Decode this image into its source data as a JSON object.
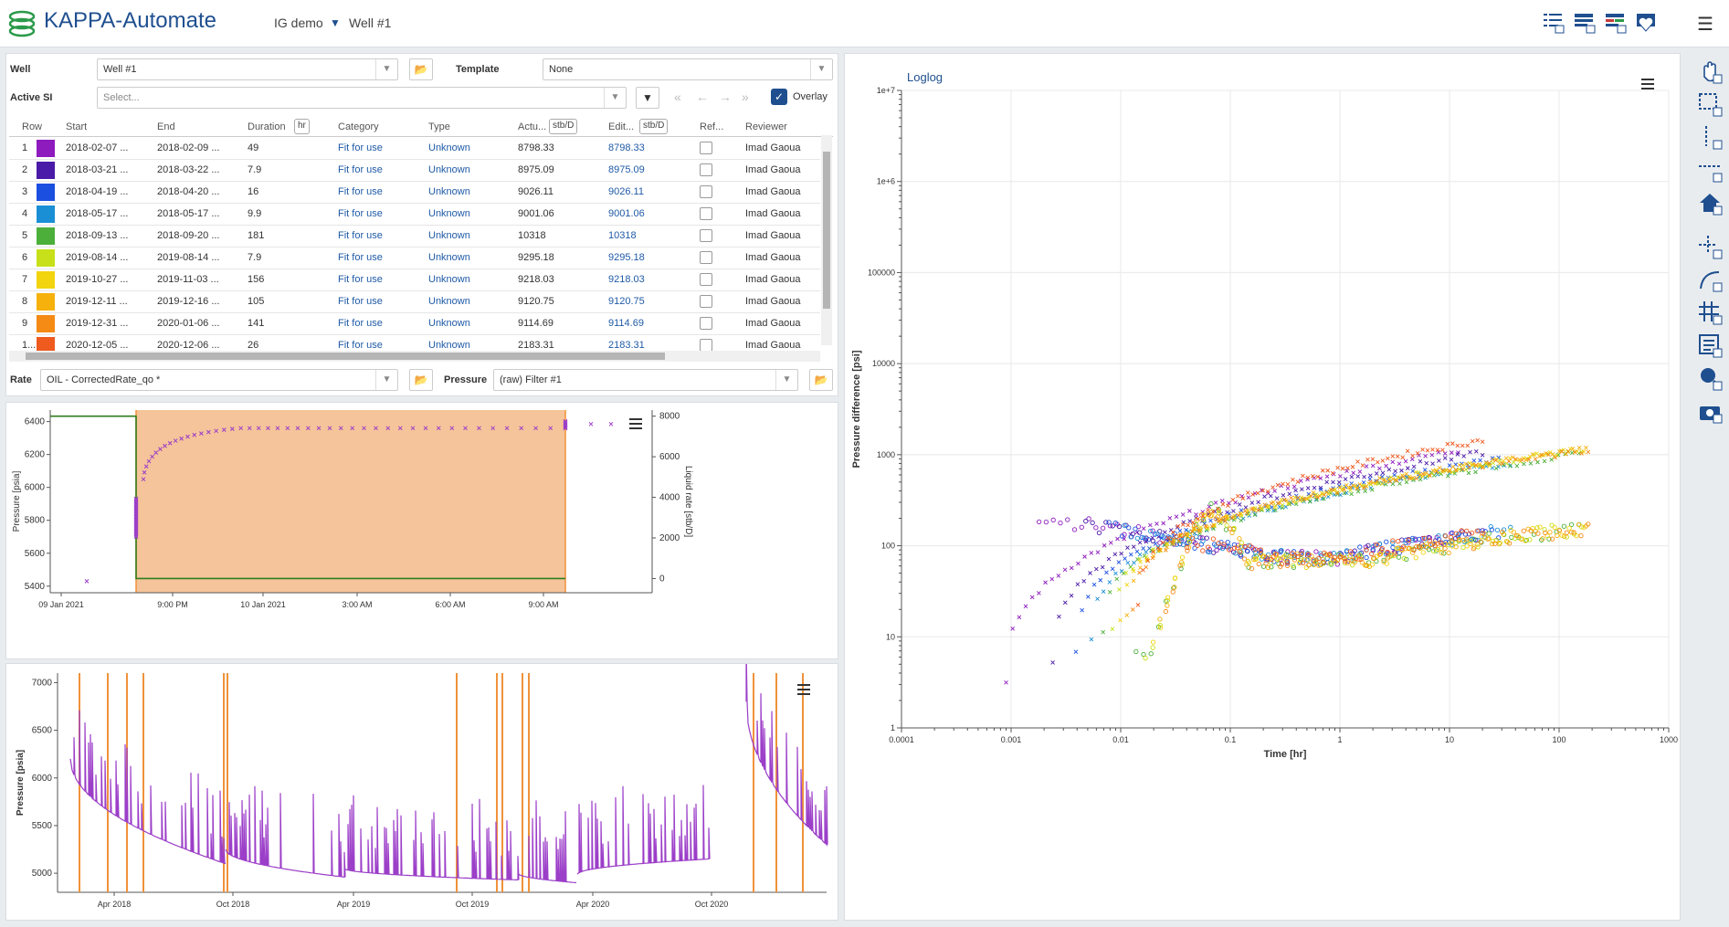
{
  "header": {
    "app_title": "KAPPA-Automate",
    "breadcrumb_project": "IG demo",
    "breadcrumb_well": "Well #1"
  },
  "form": {
    "well_label": "Well",
    "well_value": "Well #1",
    "template_label": "Template",
    "template_value": "None",
    "active_si_label": "Active SI",
    "active_si_placeholder": "Select...",
    "overlay_label": "Overlay",
    "rate_label": "Rate",
    "rate_value": "OIL - CorrectedRate_qo *",
    "pressure_label": "Pressure",
    "pressure_value": "(raw) Filter #1"
  },
  "table": {
    "headers": {
      "row": "Row",
      "start": "Start",
      "end": "End",
      "duration": "Duration",
      "duration_unit": "hr",
      "category": "Category",
      "type": "Type",
      "actual": "Actu...",
      "actual_unit": "stb/D",
      "edited": "Edit...",
      "edited_unit": "stb/D",
      "ref": "Ref...",
      "reviewer": "Reviewer"
    },
    "rows": [
      {
        "row": "1",
        "color": "#8e1bbd",
        "start": "2018-02-07 ...",
        "end": "2018-02-09 ...",
        "duration": "49",
        "category": "Fit for use",
        "type": "Unknown",
        "actual": "8798.33",
        "edited": "8798.33",
        "reviewer": "Imad Gaoua"
      },
      {
        "row": "2",
        "color": "#4a1aa8",
        "start": "2018-03-21 ...",
        "end": "2018-03-22 ...",
        "duration": "7.9",
        "category": "Fit for use",
        "type": "Unknown",
        "actual": "8975.09",
        "edited": "8975.09",
        "reviewer": "Imad Gaoua"
      },
      {
        "row": "3",
        "color": "#1b4fe0",
        "start": "2018-04-19 ...",
        "end": "2018-04-20 ...",
        "duration": "16",
        "category": "Fit for use",
        "type": "Unknown",
        "actual": "9026.11",
        "edited": "9026.11",
        "reviewer": "Imad Gaoua"
      },
      {
        "row": "4",
        "color": "#1a8fd6",
        "start": "2018-05-17 ...",
        "end": "2018-05-17 ...",
        "duration": "9.9",
        "category": "Fit for use",
        "type": "Unknown",
        "actual": "9001.06",
        "edited": "9001.06",
        "reviewer": "Imad Gaoua"
      },
      {
        "row": "5",
        "color": "#4caf3a",
        "start": "2018-09-13 ...",
        "end": "2018-09-20 ...",
        "duration": "181",
        "category": "Fit for use",
        "type": "Unknown",
        "actual": "10318",
        "edited": "10318",
        "reviewer": "Imad Gaoua"
      },
      {
        "row": "6",
        "color": "#c7e01a",
        "start": "2019-08-14 ...",
        "end": "2019-08-14 ...",
        "duration": "7.9",
        "category": "Fit for use",
        "type": "Unknown",
        "actual": "9295.18",
        "edited": "9295.18",
        "reviewer": "Imad Gaoua"
      },
      {
        "row": "7",
        "color": "#f2d40f",
        "start": "2019-10-27 ...",
        "end": "2019-11-03 ...",
        "duration": "156",
        "category": "Fit for use",
        "type": "Unknown",
        "actual": "9218.03",
        "edited": "9218.03",
        "reviewer": "Imad Gaoua"
      },
      {
        "row": "8",
        "color": "#f6b10d",
        "start": "2019-12-11 ...",
        "end": "2019-12-16 ...",
        "duration": "105",
        "category": "Fit for use",
        "type": "Unknown",
        "actual": "9120.75",
        "edited": "9120.75",
        "reviewer": "Imad Gaoua"
      },
      {
        "row": "9",
        "color": "#f58a14",
        "start": "2019-12-31 ...",
        "end": "2020-01-06 ...",
        "duration": "141",
        "category": "Fit for use",
        "type": "Unknown",
        "actual": "9114.69",
        "edited": "9114.69",
        "reviewer": "Imad Gaoua"
      },
      {
        "row": "1...",
        "color": "#ef5a1f",
        "start": "2020-12-05 ...",
        "end": "2020-12-06 ...",
        "duration": "26",
        "category": "Fit for use",
        "type": "Unknown",
        "actual": "2183.31",
        "edited": "2183.31",
        "reviewer": "Imad Gaoua"
      }
    ]
  },
  "chart_data": [
    {
      "type": "scatter",
      "ylabel": "Pressure [psia]",
      "y2label": "Liquid rate [stb/D]",
      "x_ticks": [
        "09 Jan 2021",
        "9:00 PM",
        "10 Jan 2021",
        "3:00 AM",
        "6:00 AM",
        "9:00 AM"
      ],
      "y_ticks": [
        5400,
        5600,
        5800,
        6000,
        6200,
        6400
      ],
      "y2_ticks": [
        0,
        2000,
        4000,
        6000,
        8000
      ],
      "ylim": [
        5360,
        6470
      ],
      "y2lim": [
        -700,
        8300
      ],
      "highlight_color": "#f5c49a",
      "pressure_color": "#9b3ec8",
      "rate_color": "#2e7d1f",
      "rate_steps": [
        8000,
        0
      ]
    },
    {
      "type": "line",
      "ylabel": "Pressure [psia]",
      "x_ticks": [
        "Apr 2018",
        "Oct 2018",
        "Apr 2019",
        "Oct 2019",
        "Apr 2020",
        "Oct 2020"
      ],
      "y_ticks": [
        5000,
        5500,
        6000,
        6500,
        7000
      ],
      "ylim": [
        4800,
        7100
      ],
      "series_color": "#9b3ec8",
      "shutin_color": "#f0923a"
    },
    {
      "type": "scatter",
      "title": "Loglog",
      "xlabel": "Time [hr]",
      "ylabel": "Pressure difference [psi]",
      "x_scale": "log",
      "y_scale": "log",
      "xlim": [
        0.0001,
        1000
      ],
      "ylim": [
        1,
        10000000
      ],
      "x_ticks": [
        "0.0001",
        "0.001",
        "0.01",
        "0.1",
        "1",
        "10",
        "100",
        "1000"
      ],
      "y_ticks": [
        "1",
        "10",
        "100",
        "1000",
        "10000",
        "100000",
        "1e+6",
        "1e+7"
      ],
      "series": [
        {
          "color": "#8e1bbd",
          "end_dp": 1120
        },
        {
          "color": "#4a1aa8",
          "end_dp": 1050
        },
        {
          "color": "#1b4fe0",
          "end_dp": 900
        },
        {
          "color": "#1a8fd6",
          "end_dp": 820
        },
        {
          "color": "#4caf3a",
          "end_dp": 1000
        },
        {
          "color": "#c7e01a",
          "end_dp": 1100
        },
        {
          "color": "#f2d40f",
          "end_dp": 1130
        },
        {
          "color": "#f6b10d",
          "end_dp": 1140
        },
        {
          "color": "#f58a14",
          "end_dp": 1100
        },
        {
          "color": "#ef5a1f",
          "end_dp": 1450
        }
      ]
    }
  ]
}
